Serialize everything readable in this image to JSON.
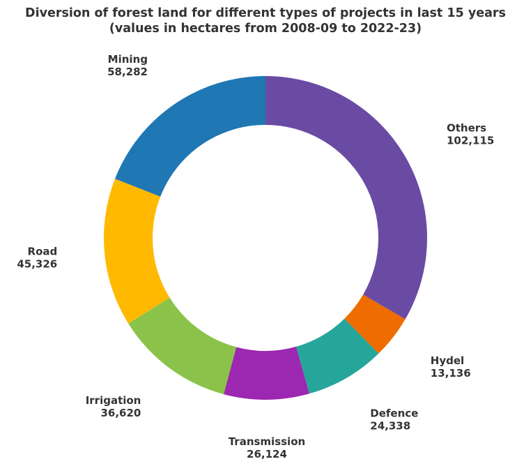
{
  "chart_data": {
    "type": "pie",
    "variant": "donut",
    "title": "Diversion of forest land for different types of projects in last 15 years",
    "subtitle": "(values in hectares from 2008-09 to 2022-23)",
    "start": "12 o'clock",
    "direction": "clockwise",
    "legend": "none",
    "slices": [
      {
        "label": "Others",
        "value": 102115,
        "value_text": "102,115",
        "color": "#6a4ba3"
      },
      {
        "label": "Hydel",
        "value": 13136,
        "value_text": "13,136",
        "color": "#ef6c00"
      },
      {
        "label": "Defence",
        "value": 24338,
        "value_text": "24,338",
        "color": "#26a69a"
      },
      {
        "label": "Transmission",
        "value": 26124,
        "value_text": "26,124",
        "color": "#9c27b0"
      },
      {
        "label": "Irrigation",
        "value": 36620,
        "value_text": "36,620",
        "color": "#8bc34a"
      },
      {
        "label": "Road",
        "value": 45326,
        "value_text": "45,326",
        "color": "#ffb900"
      },
      {
        "label": "Mining",
        "value": 58282,
        "value_text": "58,282",
        "color": "#1f77b4"
      }
    ]
  }
}
